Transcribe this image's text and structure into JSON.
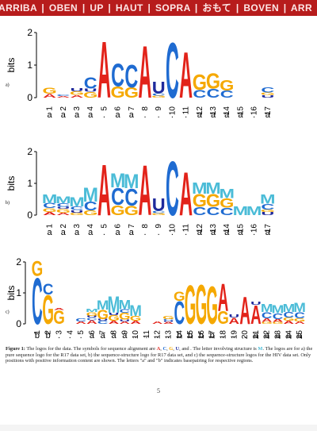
{
  "banner": {
    "text": "ARRIBA | OBEN | UP | HAUT | SOPRA | おもて | BOVEN | ARR"
  },
  "colors": {
    "A": "#e2231a",
    "C": "#1f6bd1",
    "G": "#f5a800",
    "U": "#1f2a9c",
    "M": "#4bbcd7",
    "banner": "#b71c1c"
  },
  "logos": [
    {
      "id": "a",
      "panel_label": "a)",
      "ylabel": "bits",
      "yticks": [
        "2",
        "1",
        "0"
      ],
      "ymax": 2,
      "positions": [
        "1",
        "2",
        "3",
        "4",
        "5",
        "6",
        "7",
        "8",
        "9",
        "10",
        "11",
        "12",
        "13",
        "14",
        "15",
        "16",
        "17"
      ],
      "pair_marks": [
        "a",
        "a",
        "a",
        "a",
        ".",
        "a",
        "a",
        ".",
        ".",
        ".",
        ".",
        "a",
        "a",
        "a",
        "a",
        ".",
        "a"
      ],
      "stacks": [
        [
          [
            "A",
            0.12
          ],
          [
            "G",
            0.2
          ]
        ],
        [
          [
            "A",
            0.05
          ],
          [
            "C",
            0.05
          ]
        ],
        [
          [
            "A",
            0.08
          ],
          [
            "G",
            0.12
          ],
          [
            "U",
            0.1
          ]
        ],
        [
          [
            "G",
            0.18
          ],
          [
            "U",
            0.1
          ],
          [
            "C",
            0.35
          ]
        ],
        [
          [
            "A",
            1.78
          ]
        ],
        [
          [
            "G",
            0.35
          ],
          [
            "C",
            0.72
          ]
        ],
        [
          [
            "G",
            0.32
          ],
          [
            "C",
            0.72
          ]
        ],
        [
          [
            "A",
            1.65
          ]
        ],
        [
          [
            "G",
            0.06
          ],
          [
            "C",
            0.08
          ],
          [
            "U",
            0.38
          ]
        ],
        [
          [
            "C",
            1.75
          ]
        ],
        [
          [
            "A",
            1.45
          ]
        ],
        [
          [
            "C",
            0.25
          ],
          [
            "G",
            0.48
          ]
        ],
        [
          [
            "C",
            0.28
          ],
          [
            "G",
            0.48
          ]
        ],
        [
          [
            "C",
            0.22
          ],
          [
            "G",
            0.32
          ]
        ],
        [],
        [],
        [
          [
            "U",
            0.08
          ],
          [
            "G",
            0.08
          ],
          [
            "C",
            0.16
          ]
        ]
      ]
    },
    {
      "id": "b",
      "panel_label": "b)",
      "ylabel": "bits",
      "yticks": [
        "2",
        "1",
        "0"
      ],
      "ymax": 2,
      "positions": [
        "1",
        "2",
        "3",
        "4",
        "5",
        "6",
        "7",
        "8",
        "9",
        "10",
        "11",
        "12",
        "13",
        "14",
        "15",
        "16",
        "17"
      ],
      "pair_marks": [
        "a",
        "a",
        "a",
        "a",
        ".",
        "a",
        "a",
        ".",
        ".",
        ".",
        ".",
        "a",
        "a",
        "a",
        "a",
        ".",
        "a"
      ],
      "stacks": [
        [
          [
            "A",
            0.1
          ],
          [
            "G",
            0.12
          ],
          [
            "C",
            0.16
          ],
          [
            "M",
            0.28
          ]
        ],
        [
          [
            "A",
            0.08
          ],
          [
            "G",
            0.12
          ],
          [
            "U",
            0.06
          ],
          [
            "C",
            0.12
          ],
          [
            "M",
            0.22
          ]
        ],
        [
          [
            "G",
            0.08
          ],
          [
            "U",
            0.08
          ],
          [
            "C",
            0.12
          ],
          [
            "M",
            0.3
          ]
        ],
        [
          [
            "G",
            0.15
          ],
          [
            "C",
            0.28
          ],
          [
            "M",
            0.45
          ]
        ],
        [
          [
            "A",
            1.65
          ]
        ],
        [
          [
            "G",
            0.32
          ],
          [
            "C",
            0.55
          ],
          [
            "M",
            0.45
          ]
        ],
        [
          [
            "G",
            0.3
          ],
          [
            "C",
            0.55
          ],
          [
            "M",
            0.45
          ]
        ],
        [
          [
            "A",
            1.62
          ]
        ],
        [
          [
            "G",
            0.06
          ],
          [
            "C",
            0.08
          ],
          [
            "U",
            0.4
          ]
        ],
        [
          [
            "C",
            1.75
          ]
        ],
        [
          [
            "A",
            1.4
          ]
        ],
        [
          [
            "C",
            0.26
          ],
          [
            "G",
            0.42
          ],
          [
            "M",
            0.36
          ]
        ],
        [
          [
            "C",
            0.26
          ],
          [
            "G",
            0.42
          ],
          [
            "M",
            0.36
          ]
        ],
        [
          [
            "C",
            0.24
          ],
          [
            "G",
            0.3
          ],
          [
            "M",
            0.3
          ]
        ],
        [
          [
            "M",
            0.28
          ]
        ],
        [
          [
            "M",
            0.28
          ]
        ],
        [
          [
            "U",
            0.1
          ],
          [
            "G",
            0.08
          ],
          [
            "C",
            0.18
          ],
          [
            "M",
            0.3
          ]
        ]
      ]
    },
    {
      "id": "c",
      "panel_label": "c)",
      "ylabel": "bits",
      "yticks": [
        "2",
        "1",
        "0"
      ],
      "ymax": 2,
      "positions": [
        "1",
        "2",
        "3",
        "4",
        "5",
        "6",
        "7",
        "8",
        "9",
        "10",
        "11",
        "12",
        "13",
        "14",
        "15",
        "16",
        "17",
        "18",
        "19",
        "20",
        "21",
        "22",
        "23",
        "24",
        "25"
      ],
      "pair_marks": [
        "b",
        "b",
        ".",
        ".",
        ".",
        "a",
        "a",
        "a",
        "a",
        ".",
        ".",
        ".",
        ".",
        "b",
        "b",
        "b",
        "b",
        ".",
        ".",
        ".",
        "a",
        "a",
        "a",
        "a",
        "a"
      ],
      "stacks": [
        [
          [
            "C",
            1.55
          ],
          [
            "G",
            0.5
          ]
        ],
        [
          [
            "G",
            0.95
          ],
          [
            "C",
            0.35
          ]
        ],
        [
          [
            "G",
            0.45
          ],
          [
            "A",
            0.06
          ]
        ],
        [],
        [
          [
            "A",
            0.08
          ],
          [
            "C",
            0.1
          ]
        ],
        [
          [
            "A",
            0.12
          ],
          [
            "C",
            0.08
          ],
          [
            "U",
            0.06
          ],
          [
            "G",
            0.12
          ],
          [
            "M",
            0.1
          ]
        ],
        [
          [
            "C",
            0.1
          ],
          [
            "U",
            0.06
          ],
          [
            "G",
            0.3
          ],
          [
            "M",
            0.3
          ]
        ],
        [
          [
            "A",
            0.1
          ],
          [
            "G",
            0.18
          ],
          [
            "U",
            0.08
          ],
          [
            "M",
            0.55
          ]
        ],
        [
          [
            "A",
            0.08
          ],
          [
            "U",
            0.06
          ],
          [
            "G",
            0.22
          ],
          [
            "C",
            0.12
          ],
          [
            "M",
            0.3
          ]
        ],
        [
          [
            "A",
            0.1
          ],
          [
            "G",
            0.16
          ],
          [
            "M",
            0.35
          ]
        ],
        [],
        [
          [
            "A",
            0.08
          ]
        ],
        [
          [
            "A",
            0.06
          ],
          [
            "U",
            0.04
          ],
          [
            "C",
            0.06
          ],
          [
            "G",
            0.1
          ]
        ],
        [
          [
            "C",
            0.75
          ],
          [
            "G",
            0.3
          ]
        ],
        [
          [
            "G",
            1.28
          ]
        ],
        [
          [
            "G",
            1.3
          ]
        ],
        [
          [
            "G",
            1.25
          ]
        ],
        [
          [
            "G",
            0.42
          ],
          [
            "A",
            0.9
          ]
        ],
        [
          [
            "A",
            0.2
          ],
          [
            "U",
            0.1
          ]
        ],
        [
          [
            "A",
            0.9
          ]
        ],
        [
          [
            "A",
            0.62
          ],
          [
            "U",
            0.1
          ]
        ],
        [
          [
            "G",
            0.06
          ],
          [
            "A",
            0.12
          ],
          [
            "C",
            0.2
          ],
          [
            "M",
            0.28
          ]
        ],
        [
          [
            "G",
            0.06
          ],
          [
            "A",
            0.1
          ],
          [
            "C",
            0.18
          ],
          [
            "M",
            0.28
          ]
        ],
        [
          [
            "A",
            0.1
          ],
          [
            "G",
            0.1
          ],
          [
            "C",
            0.18
          ],
          [
            "M",
            0.28
          ]
        ],
        [
          [
            "A",
            0.08
          ],
          [
            "G",
            0.1
          ],
          [
            "C",
            0.2
          ],
          [
            "M",
            0.3
          ]
        ]
      ]
    }
  ],
  "caption": {
    "prefix": "Figure 1:",
    "part1": "The logos for the data. The symbols for sequence alignment are",
    "sym_A": "A",
    "sym_C": "C",
    "sym_G": "G",
    "sym_U": "U",
    "part2": "and  . The letter involving structure is",
    "sym_M": "M",
    "part3": ". The logos are for a) the pure sequence logo for the R17 data set, b) the sequence-structure logo for R17 data set, and c) the sequence-structure logos for the HIV data set. Only positions with positive information content are shown. The letters \"a\" and \"b\" indicates basepairing for respective regions."
  },
  "page_number": "5"
}
